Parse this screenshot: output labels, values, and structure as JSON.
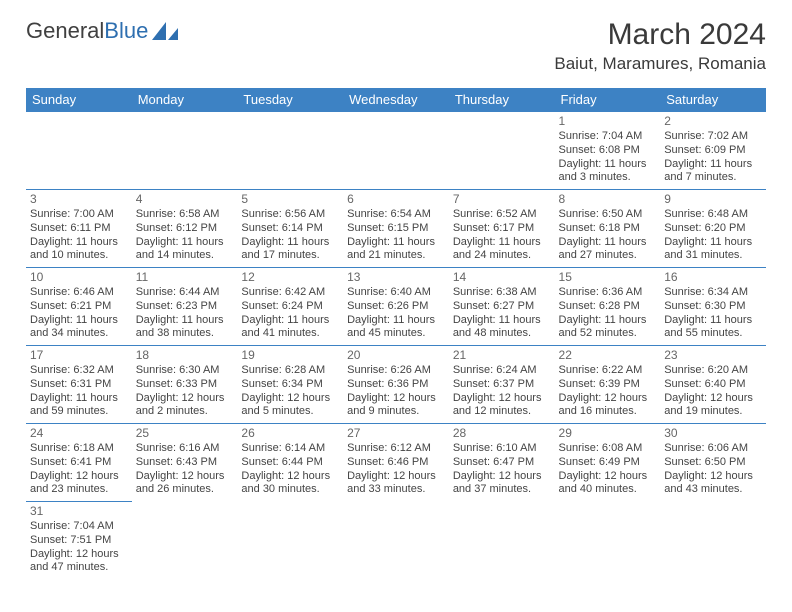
{
  "logo": {
    "text_dark": "General",
    "text_blue": "Blue"
  },
  "title": "March 2024",
  "location": "Baiut, Maramures, Romania",
  "colors": {
    "header_bg": "#3d82c4",
    "header_text": "#ffffff",
    "border": "#3d82c4",
    "body_text": "#444444",
    "daynum": "#666666",
    "page_bg": "#ffffff",
    "logo_blue": "#2e6fb0",
    "logo_dark": "#404040"
  },
  "typography": {
    "title_fontsize": 30,
    "location_fontsize": 17,
    "header_fontsize": 13,
    "cell_fontsize": 11
  },
  "day_headers": [
    "Sunday",
    "Monday",
    "Tuesday",
    "Wednesday",
    "Thursday",
    "Friday",
    "Saturday"
  ],
  "weeks": [
    [
      null,
      null,
      null,
      null,
      null,
      {
        "n": "1",
        "sr": "Sunrise: 7:04 AM",
        "ss": "Sunset: 6:08 PM",
        "dl": "Daylight: 11 hours and 3 minutes."
      },
      {
        "n": "2",
        "sr": "Sunrise: 7:02 AM",
        "ss": "Sunset: 6:09 PM",
        "dl": "Daylight: 11 hours and 7 minutes."
      }
    ],
    [
      {
        "n": "3",
        "sr": "Sunrise: 7:00 AM",
        "ss": "Sunset: 6:11 PM",
        "dl": "Daylight: 11 hours and 10 minutes."
      },
      {
        "n": "4",
        "sr": "Sunrise: 6:58 AM",
        "ss": "Sunset: 6:12 PM",
        "dl": "Daylight: 11 hours and 14 minutes."
      },
      {
        "n": "5",
        "sr": "Sunrise: 6:56 AM",
        "ss": "Sunset: 6:14 PM",
        "dl": "Daylight: 11 hours and 17 minutes."
      },
      {
        "n": "6",
        "sr": "Sunrise: 6:54 AM",
        "ss": "Sunset: 6:15 PM",
        "dl": "Daylight: 11 hours and 21 minutes."
      },
      {
        "n": "7",
        "sr": "Sunrise: 6:52 AM",
        "ss": "Sunset: 6:17 PM",
        "dl": "Daylight: 11 hours and 24 minutes."
      },
      {
        "n": "8",
        "sr": "Sunrise: 6:50 AM",
        "ss": "Sunset: 6:18 PM",
        "dl": "Daylight: 11 hours and 27 minutes."
      },
      {
        "n": "9",
        "sr": "Sunrise: 6:48 AM",
        "ss": "Sunset: 6:20 PM",
        "dl": "Daylight: 11 hours and 31 minutes."
      }
    ],
    [
      {
        "n": "10",
        "sr": "Sunrise: 6:46 AM",
        "ss": "Sunset: 6:21 PM",
        "dl": "Daylight: 11 hours and 34 minutes."
      },
      {
        "n": "11",
        "sr": "Sunrise: 6:44 AM",
        "ss": "Sunset: 6:23 PM",
        "dl": "Daylight: 11 hours and 38 minutes."
      },
      {
        "n": "12",
        "sr": "Sunrise: 6:42 AM",
        "ss": "Sunset: 6:24 PM",
        "dl": "Daylight: 11 hours and 41 minutes."
      },
      {
        "n": "13",
        "sr": "Sunrise: 6:40 AM",
        "ss": "Sunset: 6:26 PM",
        "dl": "Daylight: 11 hours and 45 minutes."
      },
      {
        "n": "14",
        "sr": "Sunrise: 6:38 AM",
        "ss": "Sunset: 6:27 PM",
        "dl": "Daylight: 11 hours and 48 minutes."
      },
      {
        "n": "15",
        "sr": "Sunrise: 6:36 AM",
        "ss": "Sunset: 6:28 PM",
        "dl": "Daylight: 11 hours and 52 minutes."
      },
      {
        "n": "16",
        "sr": "Sunrise: 6:34 AM",
        "ss": "Sunset: 6:30 PM",
        "dl": "Daylight: 11 hours and 55 minutes."
      }
    ],
    [
      {
        "n": "17",
        "sr": "Sunrise: 6:32 AM",
        "ss": "Sunset: 6:31 PM",
        "dl": "Daylight: 11 hours and 59 minutes."
      },
      {
        "n": "18",
        "sr": "Sunrise: 6:30 AM",
        "ss": "Sunset: 6:33 PM",
        "dl": "Daylight: 12 hours and 2 minutes."
      },
      {
        "n": "19",
        "sr": "Sunrise: 6:28 AM",
        "ss": "Sunset: 6:34 PM",
        "dl": "Daylight: 12 hours and 5 minutes."
      },
      {
        "n": "20",
        "sr": "Sunrise: 6:26 AM",
        "ss": "Sunset: 6:36 PM",
        "dl": "Daylight: 12 hours and 9 minutes."
      },
      {
        "n": "21",
        "sr": "Sunrise: 6:24 AM",
        "ss": "Sunset: 6:37 PM",
        "dl": "Daylight: 12 hours and 12 minutes."
      },
      {
        "n": "22",
        "sr": "Sunrise: 6:22 AM",
        "ss": "Sunset: 6:39 PM",
        "dl": "Daylight: 12 hours and 16 minutes."
      },
      {
        "n": "23",
        "sr": "Sunrise: 6:20 AM",
        "ss": "Sunset: 6:40 PM",
        "dl": "Daylight: 12 hours and 19 minutes."
      }
    ],
    [
      {
        "n": "24",
        "sr": "Sunrise: 6:18 AM",
        "ss": "Sunset: 6:41 PM",
        "dl": "Daylight: 12 hours and 23 minutes."
      },
      {
        "n": "25",
        "sr": "Sunrise: 6:16 AM",
        "ss": "Sunset: 6:43 PM",
        "dl": "Daylight: 12 hours and 26 minutes."
      },
      {
        "n": "26",
        "sr": "Sunrise: 6:14 AM",
        "ss": "Sunset: 6:44 PM",
        "dl": "Daylight: 12 hours and 30 minutes."
      },
      {
        "n": "27",
        "sr": "Sunrise: 6:12 AM",
        "ss": "Sunset: 6:46 PM",
        "dl": "Daylight: 12 hours and 33 minutes."
      },
      {
        "n": "28",
        "sr": "Sunrise: 6:10 AM",
        "ss": "Sunset: 6:47 PM",
        "dl": "Daylight: 12 hours and 37 minutes."
      },
      {
        "n": "29",
        "sr": "Sunrise: 6:08 AM",
        "ss": "Sunset: 6:49 PM",
        "dl": "Daylight: 12 hours and 40 minutes."
      },
      {
        "n": "30",
        "sr": "Sunrise: 6:06 AM",
        "ss": "Sunset: 6:50 PM",
        "dl": "Daylight: 12 hours and 43 minutes."
      }
    ],
    [
      {
        "n": "31",
        "sr": "Sunrise: 7:04 AM",
        "ss": "Sunset: 7:51 PM",
        "dl": "Daylight: 12 hours and 47 minutes."
      },
      null,
      null,
      null,
      null,
      null,
      null
    ]
  ]
}
